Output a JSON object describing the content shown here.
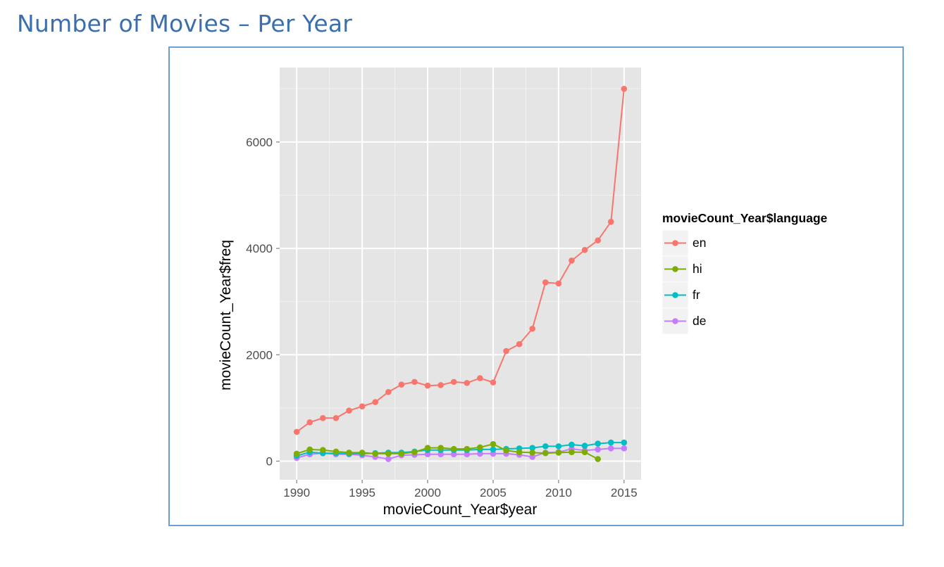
{
  "page": {
    "title": "Number of Movies – Per Year"
  },
  "chart_data": {
    "type": "line",
    "xlabel": "movieCount_Year$year",
    "ylabel": "movieCount_Year$freq",
    "xlim": [
      1988.7,
      2016.3
    ],
    "ylim": [
      -350,
      7400
    ],
    "x_ticks": [
      1990,
      1995,
      2000,
      2005,
      2010,
      2015
    ],
    "y_ticks": [
      0,
      2000,
      4000,
      6000
    ],
    "x_tick_labels": [
      "1990",
      "1995",
      "2000",
      "2005",
      "2010",
      "2015"
    ],
    "y_tick_labels": [
      "0",
      "2000",
      "4000",
      "6000"
    ],
    "grid": true,
    "legend": {
      "title": "movieCount_Year$language",
      "position": "right"
    },
    "series": [
      {
        "name": "en",
        "color": "#f8766d",
        "x": [
          1990,
          1991,
          1992,
          1993,
          1994,
          1995,
          1996,
          1997,
          1998,
          1999,
          2000,
          2001,
          2002,
          2003,
          2004,
          2005,
          2006,
          2007,
          2008,
          2009,
          2010,
          2011,
          2012,
          2013,
          2014,
          2015
        ],
        "y": [
          550,
          730,
          810,
          810,
          950,
          1030,
          1110,
          1300,
          1440,
          1490,
          1420,
          1430,
          1490,
          1470,
          1560,
          1480,
          2070,
          2200,
          2490,
          3360,
          3340,
          3770,
          3970,
          4150,
          4500,
          7000
        ]
      },
      {
        "name": "hi",
        "color": "#7cae00",
        "x": [
          1990,
          1991,
          1992,
          1993,
          1994,
          1995,
          1996,
          1997,
          1998,
          1999,
          2000,
          2001,
          2002,
          2003,
          2004,
          2005,
          2006,
          2007,
          2008,
          2009,
          2010,
          2011,
          2012,
          2013
        ],
        "y": [
          140,
          220,
          210,
          180,
          160,
          160,
          140,
          140,
          140,
          170,
          250,
          250,
          230,
          230,
          260,
          320,
          200,
          170,
          160,
          150,
          160,
          170,
          170,
          40
        ]
      },
      {
        "name": "fr",
        "color": "#00bfc4",
        "x": [
          1990,
          1991,
          1992,
          1993,
          1994,
          1995,
          1996,
          1997,
          1998,
          1999,
          2000,
          2001,
          2002,
          2003,
          2004,
          2005,
          2006,
          2007,
          2008,
          2009,
          2010,
          2011,
          2012,
          2013,
          2014,
          2015
        ],
        "y": [
          100,
          170,
          150,
          150,
          140,
          140,
          150,
          160,
          160,
          180,
          210,
          210,
          210,
          210,
          220,
          220,
          230,
          240,
          250,
          280,
          280,
          310,
          290,
          330,
          350,
          350
        ]
      },
      {
        "name": "de",
        "color": "#c77cff",
        "x": [
          1990,
          1991,
          1992,
          1993,
          1994,
          1995,
          1996,
          1997,
          1998,
          1999,
          2000,
          2001,
          2002,
          2003,
          2004,
          2005,
          2006,
          2007,
          2008,
          2009,
          2010,
          2011,
          2012,
          2013,
          2014,
          2015
        ],
        "y": [
          60,
          130,
          150,
          130,
          130,
          110,
          80,
          40,
          110,
          120,
          130,
          130,
          130,
          130,
          140,
          140,
          140,
          120,
          80,
          160,
          170,
          230,
          200,
          220,
          240,
          240
        ]
      }
    ]
  }
}
